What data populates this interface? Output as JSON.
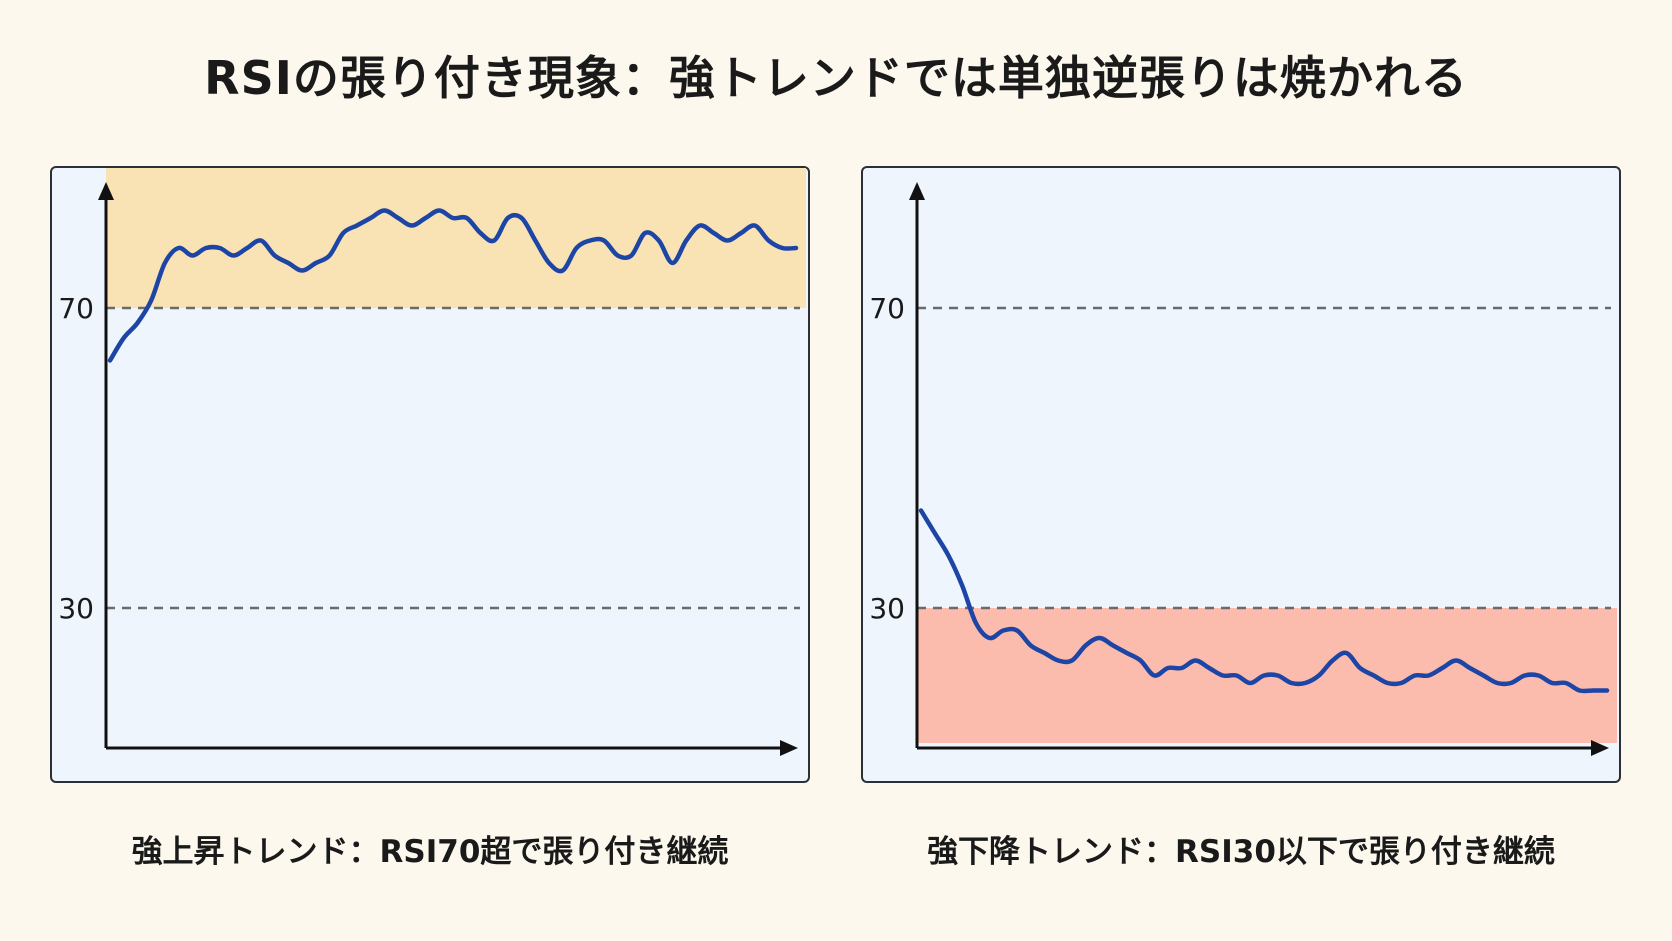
{
  "title": "RSIの張り付き現象：強トレンドでは単独逆張りは焼かれる",
  "chart_data": [
    {
      "type": "line",
      "caption": "強上昇トレンド：RSI70超で張り付き継続",
      "yticks": [
        70,
        30
      ],
      "ylim": [
        12,
        95
      ],
      "highlight_band": [
        70,
        95
      ],
      "highlight_color": "#f9e3b4",
      "line_color": "#1c45a6",
      "x": [
        0,
        2,
        4,
        6,
        8,
        10,
        12,
        14,
        16,
        18,
        20,
        22,
        24,
        26,
        28,
        30,
        32,
        34,
        36,
        38,
        40,
        42,
        44,
        46,
        48,
        50,
        52,
        54,
        56,
        58,
        60,
        62,
        64,
        66,
        68,
        70,
        72,
        74,
        76,
        78,
        80,
        82,
        84,
        86,
        88,
        90,
        92,
        94,
        96,
        98,
        100
      ],
      "values": [
        63,
        66,
        68,
        71,
        76,
        78,
        77,
        78,
        78,
        77,
        78,
        79,
        77,
        76,
        75,
        76,
        77,
        80,
        81,
        82,
        83,
        82,
        81,
        82,
        83,
        82,
        82,
        80,
        79,
        82,
        82,
        79,
        76,
        75,
        78,
        79,
        79,
        77,
        77,
        80,
        79,
        76,
        79,
        81,
        80,
        79,
        80,
        81,
        79,
        78,
        78
      ]
    },
    {
      "type": "line",
      "caption": "強下降トレンド：RSI30以下で張り付き継続",
      "yticks": [
        70,
        30
      ],
      "ylim": [
        12,
        95
      ],
      "highlight_band": [
        12,
        30
      ],
      "highlight_color": "#fbbcad",
      "line_color": "#1c45a6",
      "x": [
        0,
        2,
        4,
        6,
        8,
        10,
        12,
        14,
        16,
        18,
        20,
        22,
        24,
        26,
        28,
        30,
        32,
        34,
        36,
        38,
        40,
        42,
        44,
        46,
        48,
        50,
        52,
        54,
        56,
        58,
        60,
        62,
        64,
        66,
        68,
        70,
        72,
        74,
        76,
        78,
        80,
        82,
        84,
        86,
        88,
        90,
        92,
        94,
        96,
        98,
        100
      ],
      "values": [
        43,
        40,
        37,
        33,
        28,
        26,
        27,
        27,
        25,
        24,
        23,
        23,
        25,
        26,
        25,
        24,
        23,
        21,
        22,
        22,
        23,
        22,
        21,
        21,
        20,
        21,
        21,
        20,
        20,
        21,
        23,
        24,
        22,
        21,
        20,
        20,
        21,
        21,
        22,
        23,
        22,
        21,
        20,
        20,
        21,
        21,
        20,
        20,
        19,
        19,
        19
      ]
    }
  ]
}
